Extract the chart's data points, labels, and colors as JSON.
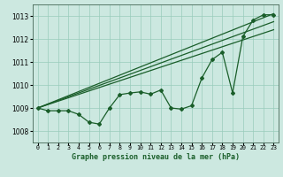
{
  "xlabel": "Graphe pression niveau de la mer (hPa)",
  "background_color": "#cce8e0",
  "grid_color": "#99ccbb",
  "line_color": "#1a5e2a",
  "x_values": [
    0,
    1,
    2,
    3,
    4,
    5,
    6,
    7,
    8,
    9,
    10,
    11,
    12,
    13,
    14,
    15,
    16,
    17,
    18,
    19,
    20,
    21,
    22,
    23
  ],
  "y_main": [
    1009.0,
    1008.88,
    1008.88,
    1008.88,
    1008.72,
    1008.38,
    1008.3,
    1009.0,
    1009.58,
    1009.65,
    1009.7,
    1009.6,
    1009.78,
    1009.0,
    1008.95,
    1009.1,
    1010.3,
    1011.1,
    1011.42,
    1009.65,
    1012.1,
    1012.82,
    1013.05,
    1013.05
  ],
  "ylim": [
    1007.5,
    1013.5
  ],
  "xlim": [
    -0.5,
    23.5
  ],
  "yticks": [
    1008,
    1009,
    1010,
    1011,
    1012,
    1013
  ],
  "xtick_labels": [
    "0",
    "1",
    "2",
    "3",
    "4",
    "5",
    "6",
    "7",
    "8",
    "9",
    "10",
    "11",
    "12",
    "13",
    "14",
    "15",
    "16",
    "17",
    "18",
    "19",
    "20",
    "21",
    "22",
    "23"
  ],
  "reg_lines": [
    {
      "x0": 0,
      "y0": 1009.0,
      "x1": 23,
      "y1": 1013.1
    },
    {
      "x0": 0,
      "y0": 1009.0,
      "x1": 23,
      "y1": 1012.75
    },
    {
      "x0": 0,
      "y0": 1009.0,
      "x1": 23,
      "y1": 1012.4
    }
  ]
}
